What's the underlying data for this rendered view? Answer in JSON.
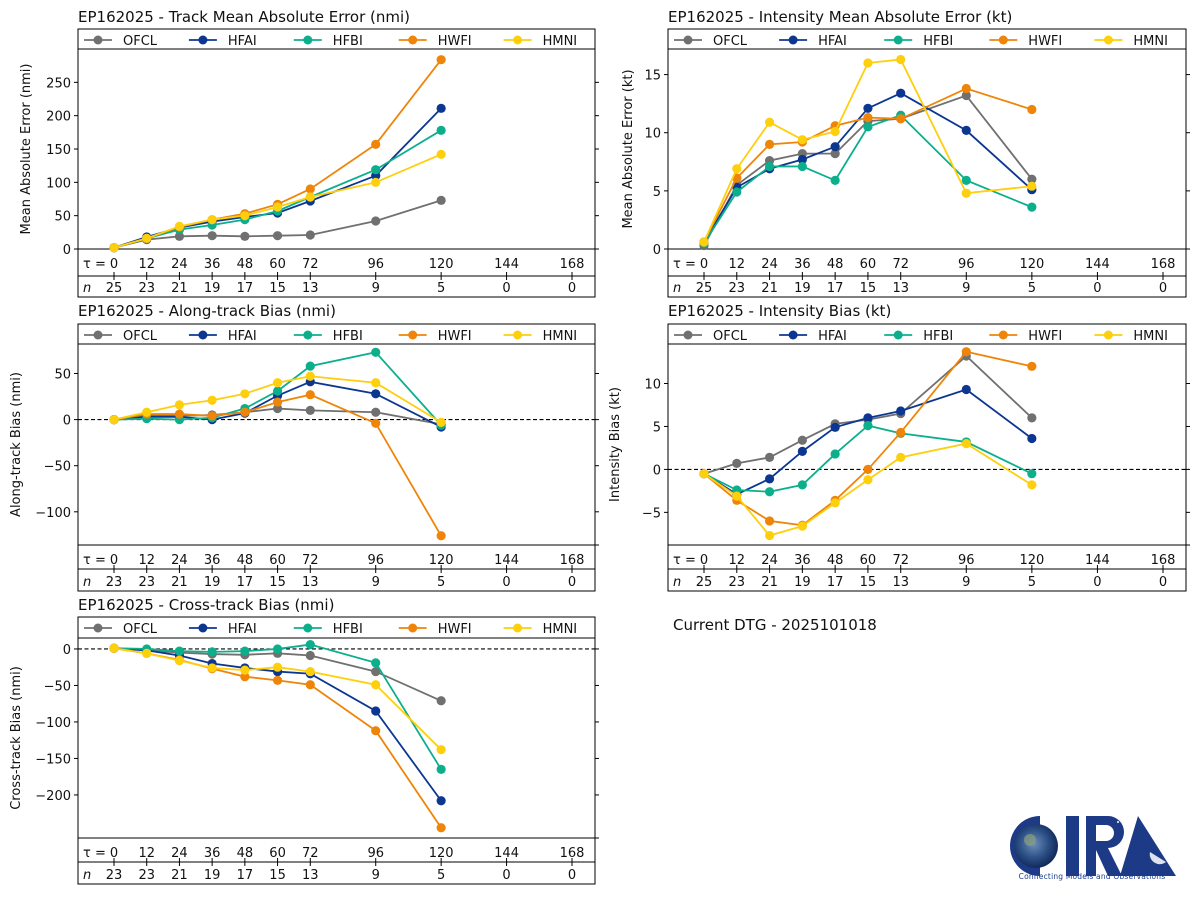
{
  "storm": "EP162025",
  "dtg_label": "Current DTG - 2025101018",
  "logo": {
    "name": "CIRA",
    "tagline": "Connecting Models and Observations"
  },
  "series_styles": [
    {
      "name": "OFCL",
      "color": "#707070"
    },
    {
      "name": "HFAI",
      "color": "#0c3791"
    },
    {
      "name": "HFBI",
      "color": "#0caf8c"
    },
    {
      "name": "HWFI",
      "color": "#ef8508"
    },
    {
      "name": "HMNI",
      "color": "#fdcf0c"
    }
  ],
  "chart_data": [
    {
      "id": "track-mae",
      "type": "line",
      "title": "EP162025 - Track Mean Absolute Error (nmi)",
      "ylabel": "Mean Absolute Error (nmi)",
      "xlabel": "τ",
      "x_ticks": [
        0,
        12,
        24,
        36,
        48,
        60,
        72,
        96,
        120,
        144,
        168
      ],
      "x": [
        0,
        12,
        24,
        36,
        48,
        60,
        72,
        96,
        120
      ],
      "n_values": [
        25,
        23,
        21,
        19,
        17,
        15,
        13,
        9,
        5,
        0,
        0
      ],
      "ylim": [
        0,
        300
      ],
      "y_ticks": [
        0,
        50,
        100,
        150,
        200,
        250
      ],
      "zero_line": false,
      "legend": "top",
      "series": [
        {
          "name": "OFCL",
          "values": [
            2,
            14,
            19,
            20,
            19,
            20,
            21,
            42,
            73
          ]
        },
        {
          "name": "HFAI",
          "values": [
            2,
            18,
            32,
            41,
            48,
            54,
            72,
            110,
            211
          ]
        },
        {
          "name": "HFBI",
          "values": [
            2,
            16,
            29,
            36,
            44,
            57,
            78,
            119,
            178
          ]
        },
        {
          "name": "HWFI",
          "values": [
            2,
            16,
            33,
            44,
            53,
            67,
            90,
            157,
            284
          ]
        },
        {
          "name": "HMNI",
          "values": [
            2,
            16,
            34,
            44,
            50,
            63,
            78,
            100,
            142
          ]
        }
      ]
    },
    {
      "id": "intensity-mae",
      "type": "line",
      "title": "EP162025 - Intensity Mean Absolute Error (kt)",
      "ylabel": "Mean Absolute Error (kt)",
      "xlabel": "τ",
      "x_ticks": [
        0,
        12,
        24,
        36,
        48,
        60,
        72,
        96,
        120,
        144,
        168
      ],
      "x": [
        0,
        12,
        24,
        36,
        48,
        60,
        72,
        96,
        120
      ],
      "n_values": [
        25,
        23,
        21,
        19,
        17,
        15,
        13,
        9,
        5,
        0,
        0
      ],
      "ylim": [
        0,
        17.2
      ],
      "y_ticks": [
        0,
        5,
        10,
        15
      ],
      "zero_line": false,
      "legend": "top",
      "series": [
        {
          "name": "OFCL",
          "values": [
            0.3,
            5.5,
            7.6,
            8.2,
            8.2,
            11.0,
            11.2,
            13.2,
            6.0
          ]
        },
        {
          "name": "HFAI",
          "values": [
            0.6,
            5.3,
            6.9,
            7.7,
            8.8,
            12.1,
            13.4,
            10.2,
            5.1
          ]
        },
        {
          "name": "HFBI",
          "values": [
            0.5,
            4.9,
            7.1,
            7.1,
            5.9,
            10.5,
            11.5,
            5.9,
            3.6
          ]
        },
        {
          "name": "HWFI",
          "values": [
            0.6,
            6.1,
            9.0,
            9.2,
            10.6,
            11.3,
            11.2,
            13.8,
            12.0
          ]
        },
        {
          "name": "HMNI",
          "values": [
            0.6,
            6.9,
            10.9,
            9.4,
            10.1,
            16.0,
            16.3,
            4.8,
            5.4
          ]
        }
      ]
    },
    {
      "id": "along-track-bias",
      "type": "line",
      "title": "EP162025 - Along-track Bias (nmi)",
      "ylabel": "Along-track Bias (nmi)",
      "xlabel": "τ",
      "x_ticks": [
        0,
        12,
        24,
        36,
        48,
        60,
        72,
        96,
        120,
        144,
        168
      ],
      "x": [
        0,
        12,
        24,
        36,
        48,
        60,
        72,
        96,
        120
      ],
      "n_values": [
        23,
        23,
        21,
        19,
        17,
        15,
        13,
        9,
        5,
        0,
        0
      ],
      "ylim": [
        -136,
        82
      ],
      "y_ticks": [
        -100,
        -50,
        0,
        50
      ],
      "zero_line": true,
      "legend": "top",
      "series": [
        {
          "name": "OFCL",
          "values": [
            0,
            4,
            4,
            5,
            8,
            12,
            10,
            8,
            -5
          ]
        },
        {
          "name": "HFAI",
          "values": [
            0,
            3,
            3,
            0,
            7,
            26,
            41,
            28,
            -8
          ]
        },
        {
          "name": "HFBI",
          "values": [
            0,
            1,
            0,
            2,
            12,
            31,
            58,
            73,
            -6
          ]
        },
        {
          "name": "HWFI",
          "values": [
            0,
            6,
            6,
            4,
            8,
            19,
            27,
            -4,
            -126
          ]
        },
        {
          "name": "HMNI",
          "values": [
            0,
            8,
            16,
            21,
            28,
            40,
            47,
            40,
            -3
          ]
        }
      ]
    },
    {
      "id": "intensity-bias",
      "type": "line",
      "title": "EP162025 - Intensity Bias (kt)",
      "ylabel": "Intensity Bias (kt)",
      "xlabel": "τ",
      "x_ticks": [
        0,
        12,
        24,
        36,
        48,
        60,
        72,
        96,
        120,
        144,
        168
      ],
      "x": [
        0,
        12,
        24,
        36,
        48,
        60,
        72,
        96,
        120
      ],
      "n_values": [
        25,
        23,
        21,
        19,
        17,
        15,
        13,
        9,
        5,
        0,
        0
      ],
      "ylim": [
        -8.8,
        14.6
      ],
      "y_ticks": [
        -5,
        0,
        5,
        10
      ],
      "zero_line": true,
      "legend": "top",
      "series": [
        {
          "name": "OFCL",
          "values": [
            -0.5,
            0.7,
            1.4,
            3.4,
            5.3,
            5.8,
            6.5,
            13.2,
            6.0
          ]
        },
        {
          "name": "HFAI",
          "values": [
            -0.5,
            -2.9,
            -1.1,
            2.1,
            4.9,
            6.0,
            6.8,
            9.3,
            3.6
          ]
        },
        {
          "name": "HFBI",
          "values": [
            -0.5,
            -2.4,
            -2.6,
            -1.8,
            1.8,
            5.1,
            4.2,
            3.2,
            -0.5
          ]
        },
        {
          "name": "HWFI",
          "values": [
            -0.5,
            -3.6,
            -6.0,
            -6.5,
            -3.6,
            0.0,
            4.3,
            13.7,
            12.0
          ]
        },
        {
          "name": "HMNI",
          "values": [
            -0.5,
            -3.1,
            -7.7,
            -6.6,
            -3.9,
            -1.2,
            1.4,
            3.0,
            -1.8
          ]
        }
      ]
    },
    {
      "id": "cross-track-bias",
      "type": "line",
      "title": "EP162025 - Cross-track Bias (nmi)",
      "ylabel": "Cross-track Bias (nmi)",
      "xlabel": "τ",
      "x_ticks": [
        0,
        12,
        24,
        36,
        48,
        60,
        72,
        96,
        120,
        144,
        168
      ],
      "x": [
        0,
        12,
        24,
        36,
        48,
        60,
        72,
        96,
        120
      ],
      "n_values": [
        23,
        23,
        21,
        19,
        17,
        15,
        13,
        9,
        5,
        0,
        0
      ],
      "ylim": [
        -259,
        15
      ],
      "y_ticks": [
        -200,
        -150,
        -100,
        -50,
        0
      ],
      "zero_line": true,
      "legend": "top",
      "series": [
        {
          "name": "OFCL",
          "values": [
            1,
            -2,
            -5,
            -7,
            -8,
            -6,
            -9,
            -31,
            -71
          ]
        },
        {
          "name": "HFAI",
          "values": [
            1,
            -2,
            -9,
            -20,
            -26,
            -31,
            -34,
            -85,
            -208
          ]
        },
        {
          "name": "HFBI",
          "values": [
            1,
            0,
            -3,
            -4,
            -3,
            0,
            6,
            -19,
            -165
          ]
        },
        {
          "name": "HWFI",
          "values": [
            1,
            -6,
            -15,
            -27,
            -38,
            -43,
            -49,
            -112,
            -245
          ]
        },
        {
          "name": "HMNI",
          "values": [
            1,
            -6,
            -16,
            -26,
            -29,
            -25,
            -31,
            -49,
            -138
          ]
        }
      ]
    }
  ]
}
